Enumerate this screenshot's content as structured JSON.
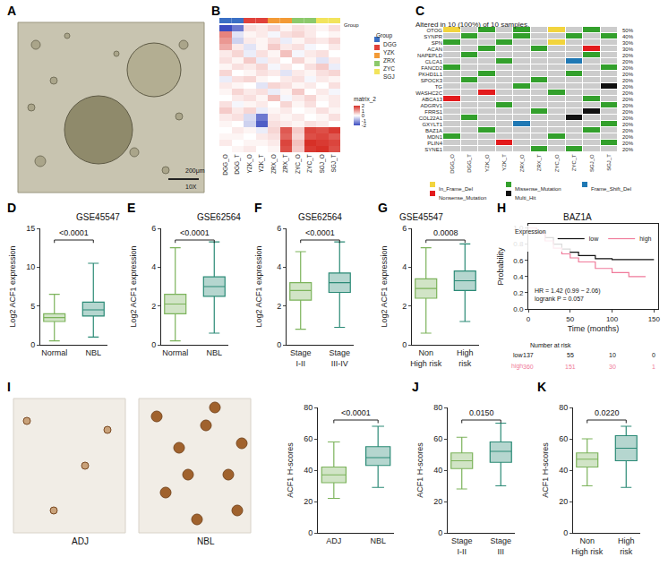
{
  "chart_data": [
    {
      "panel": "A",
      "type": "image",
      "scale_bar_label": "200μm",
      "magnification": "10X"
    },
    {
      "panel": "B",
      "type": "heatmap",
      "tick_labels": "x",
      "x": [
        "DGG_O",
        "DGG_T",
        "YZK_O",
        "YZK_T",
        "ZRX_O",
        "ZRX_T",
        "ZYC_O",
        "ZYC_T",
        "SGJ_O",
        "SGJ_T"
      ],
      "sample_groups": [
        "DGG",
        "DGG",
        "YZK",
        "YZK",
        "ZRX",
        "ZRX",
        "ZYC",
        "ZYC",
        "SGJ",
        "SGJ"
      ],
      "group_title": "Group",
      "groups": [
        {
          "name": "DGG",
          "color": "#3a6fc4"
        },
        {
          "name": "YZK",
          "color": "#e0413a"
        },
        {
          "name": "ZRX",
          "color": "#f39a35"
        },
        {
          "name": "ZYC",
          "color": "#8cc96b"
        },
        {
          "name": "SGJ",
          "color": "#f2e45c"
        }
      ],
      "colorbar_title": "matrix_2",
      "colors": [
        "#3b4cc0",
        "#ffffff",
        "#d73027"
      ],
      "color_range": [
        -2,
        2
      ],
      "color_ticks": [
        -2,
        -1,
        0,
        1,
        2
      ],
      "cells": [
        [
          -2,
          -1.5,
          0.3,
          0.2,
          0.4,
          0.1,
          0.3,
          0.2,
          0.1,
          0.3
        ],
        [
          1.2,
          -0.3,
          0.1,
          0.2,
          -0.1,
          0.3,
          0.4,
          0.2,
          0.0,
          0.1
        ],
        [
          1.0,
          -0.5,
          0.2,
          0.1,
          0.3,
          -0.2,
          0.1,
          0.3,
          0.2,
          0.4
        ],
        [
          0.8,
          0.2,
          -0.3,
          0.1,
          0.5,
          0.2,
          0.3,
          -0.1,
          0.0,
          0.2
        ],
        [
          0.2,
          0.4,
          -0.2,
          0.3,
          0.1,
          0.6,
          -0.1,
          0.2,
          0.3,
          0.0
        ],
        [
          0.3,
          0.1,
          0.5,
          -0.2,
          0.2,
          0.0,
          0.4,
          0.1,
          -0.3,
          0.2
        ],
        [
          0.1,
          0.3,
          0.2,
          0.4,
          -0.1,
          0.2,
          0.0,
          0.3,
          0.5,
          -0.2
        ],
        [
          0.4,
          0.0,
          0.1,
          0.3,
          0.2,
          -0.3,
          0.2,
          0.1,
          0.3,
          0.4
        ],
        [
          -0.2,
          0.3,
          0.4,
          0.1,
          0.0,
          0.2,
          0.3,
          -0.1,
          0.2,
          0.1
        ],
        [
          0.2,
          0.1,
          0.0,
          -0.3,
          0.4,
          0.3,
          0.1,
          0.2,
          0.0,
          0.3
        ],
        [
          0.1,
          0.4,
          0.2,
          0.3,
          -0.2,
          0.1,
          0.5,
          0.0,
          0.2,
          -0.1
        ],
        [
          0.0,
          0.2,
          0.3,
          0.1,
          0.6,
          -0.1,
          0.2,
          0.4,
          0.1,
          0.2
        ],
        [
          0.3,
          -0.1,
          0.1,
          0.2,
          0.0,
          0.4,
          0.1,
          0.3,
          0.0,
          0.2
        ],
        [
          0.5,
          0.2,
          0.4,
          -0.2,
          0.1,
          0.2,
          0.0,
          0.1,
          0.3,
          0.1
        ],
        [
          0.2,
          0.3,
          -0.4,
          -1.5,
          0.2,
          0.1,
          0.2,
          0.0,
          0.1,
          0.3
        ],
        [
          0.1,
          0.0,
          -0.5,
          -1.8,
          0.3,
          0.2,
          0.1,
          0.3,
          0.2,
          0.0
        ],
        [
          0.0,
          0.2,
          0.1,
          -0.2,
          0.4,
          1.6,
          0.5,
          1.8,
          1.7,
          1.9
        ],
        [
          0.1,
          0.1,
          0.0,
          0.2,
          0.3,
          1.5,
          0.4,
          1.7,
          1.8,
          1.6
        ],
        [
          0.2,
          0.0,
          0.1,
          0.1,
          0.2,
          1.8,
          0.6,
          2.0,
          1.9,
          1.8
        ],
        [
          0.0,
          0.1,
          0.2,
          0.0,
          0.1,
          1.7,
          0.5,
          1.9,
          2.0,
          1.7
        ]
      ]
    },
    {
      "panel": "C",
      "type": "oncoplot",
      "title": "Altered in 10 (100%) of 10 samples.",
      "x": [
        "DGG_O",
        "DGG_T",
        "YZK_O",
        "YZK_T",
        "ZRX_O",
        "ZRX_T",
        "ZYC_O",
        "ZYC_T",
        "SGJ_O",
        "SGJ_T"
      ],
      "genes": [
        "OTOG",
        "SYNPR",
        "SPN",
        "ACAN",
        "NAPEPLD",
        "CLCA1",
        "FANCD2",
        "PKHD1L1",
        "SPOCK3",
        "TG",
        "WASHC2C",
        "ABCA13",
        "ADGRV1",
        "FRRS1",
        "COL22A1",
        "GXYLT1",
        "BAZ1A",
        "MDN1",
        "PLIN4",
        "SYNE1"
      ],
      "alteration_labels": [
        "50%",
        "40%",
        "30%",
        "30%",
        "20%",
        "20%",
        "20%",
        "20%",
        "20%",
        "20%",
        "20%",
        "20%",
        "20%",
        "20%",
        "20%",
        "20%",
        "20%",
        "20%",
        "20%",
        "20%"
      ],
      "mutation_types": [
        {
          "name": "In_Frame_Del",
          "color": "#f2d43d"
        },
        {
          "name": "Missense_Mutation",
          "color": "#33a02c"
        },
        {
          "name": "Frame_Shift_Del",
          "color": "#1f78b4"
        },
        {
          "name": "Nonsense_Mutation",
          "color": "#e31a1c"
        },
        {
          "name": "Multi_Hit",
          "color": "#111111"
        }
      ],
      "cells": [
        [
          "In_Frame_Del",
          null,
          "Missense_Mutation",
          null,
          "Missense_Mutation",
          null,
          "In_Frame_Del",
          null,
          "Missense_Mutation",
          null
        ],
        [
          null,
          "Missense_Mutation",
          null,
          null,
          "Missense_Mutation",
          null,
          null,
          "Missense_Mutation",
          null,
          "Missense_Mutation"
        ],
        [
          "Missense_Mutation",
          null,
          null,
          "Missense_Mutation",
          null,
          null,
          "In_Frame_Del",
          null,
          null,
          null
        ],
        [
          null,
          null,
          "Missense_Mutation",
          null,
          null,
          "Missense_Mutation",
          null,
          null,
          "Nonsense_Mutation",
          null
        ],
        [
          null,
          "Missense_Mutation",
          null,
          null,
          null,
          null,
          null,
          null,
          "Missense_Mutation",
          null
        ],
        [
          null,
          null,
          null,
          "Missense_Mutation",
          null,
          null,
          null,
          "Frame_Shift_Del",
          null,
          null
        ],
        [
          "Missense_Mutation",
          null,
          null,
          null,
          null,
          null,
          null,
          null,
          null,
          "Missense_Mutation"
        ],
        [
          null,
          null,
          "Missense_Mutation",
          null,
          null,
          null,
          null,
          "Missense_Mutation",
          null,
          null
        ],
        [
          null,
          "Missense_Mutation",
          null,
          null,
          null,
          "Missense_Mutation",
          null,
          null,
          null,
          null
        ],
        [
          null,
          null,
          null,
          null,
          "Missense_Mutation",
          null,
          null,
          null,
          null,
          "Multi_Hit"
        ],
        [
          null,
          null,
          "Nonsense_Mutation",
          null,
          null,
          null,
          "Missense_Mutation",
          null,
          null,
          null
        ],
        [
          "Nonsense_Mutation",
          null,
          null,
          null,
          null,
          null,
          null,
          null,
          "Missense_Mutation",
          null
        ],
        [
          null,
          null,
          null,
          "Missense_Mutation",
          null,
          null,
          null,
          null,
          null,
          "Missense_Mutation"
        ],
        [
          null,
          null,
          null,
          null,
          null,
          "Missense_Mutation",
          null,
          null,
          "Multi_Hit",
          null
        ],
        [
          null,
          "Missense_Mutation",
          null,
          null,
          null,
          null,
          null,
          "Multi_Hit",
          null,
          null
        ],
        [
          null,
          null,
          null,
          null,
          "Frame_Shift_Del",
          null,
          null,
          null,
          null,
          "Missense_Mutation"
        ],
        [
          null,
          null,
          "Missense_Mutation",
          null,
          null,
          null,
          null,
          null,
          "Missense_Mutation",
          null
        ],
        [
          "Missense_Mutation",
          null,
          null,
          null,
          null,
          null,
          "Missense_Mutation",
          null,
          null,
          null
        ],
        [
          null,
          null,
          null,
          "Nonsense_Mutation",
          null,
          null,
          null,
          null,
          null,
          "Missense_Mutation"
        ],
        [
          null,
          null,
          null,
          null,
          null,
          "Missense_Mutation",
          null,
          "Missense_Mutation",
          null,
          null
        ]
      ]
    },
    {
      "panel": "D",
      "type": "box",
      "title": "GSE45547",
      "y_label": "Log2 ACF1 expression",
      "categories": [
        "Normal",
        "NBL"
      ],
      "colors": [
        "#7cb35b",
        "#2b8a76"
      ],
      "boxes": [
        {
          "q1": 3.0,
          "median": 3.5,
          "q3": 4.0,
          "lowerfence": 0.5,
          "upperfence": 6.5
        },
        {
          "q1": 3.7,
          "median": 4.5,
          "q3": 5.5,
          "lowerfence": 1.0,
          "upperfence": 10.5
        }
      ],
      "ylim": [
        0,
        15
      ],
      "yticks": [
        0,
        5,
        10,
        15
      ],
      "annotation": "<0.0001"
    },
    {
      "panel": "E",
      "type": "box",
      "title": "GSE62564",
      "y_label": "Log2 ACF1 expression",
      "categories": [
        "Normal",
        "NBL"
      ],
      "colors": [
        "#7cb35b",
        "#2b8a76"
      ],
      "boxes": [
        {
          "q1": 1.6,
          "median": 2.1,
          "q3": 2.6,
          "lowerfence": 0.2,
          "upperfence": 5.0
        },
        {
          "q1": 2.5,
          "median": 3.0,
          "q3": 3.5,
          "lowerfence": 0.6,
          "upperfence": 5.3
        }
      ],
      "ylim": [
        0,
        6
      ],
      "yticks": [
        0,
        2,
        4,
        6
      ],
      "annotation": "<0.0001"
    },
    {
      "panel": "F",
      "type": "box",
      "title": "GSE62564",
      "y_label": "Log2 ACF1 expression",
      "categories": [
        "Stage I-II",
        "Stage III-IV"
      ],
      "colors": [
        "#7cb35b",
        "#2b8a76"
      ],
      "boxes": [
        {
          "q1": 2.3,
          "median": 2.8,
          "q3": 3.2,
          "lowerfence": 0.8,
          "upperfence": 4.8
        },
        {
          "q1": 2.7,
          "median": 3.2,
          "q3": 3.7,
          "lowerfence": 0.9,
          "upperfence": 5.3
        }
      ],
      "ylim": [
        0,
        6
      ],
      "yticks": [
        0,
        2,
        4,
        6
      ],
      "annotation": "<0.0001"
    },
    {
      "panel": "G",
      "type": "box",
      "title": "GSE45547",
      "y_label": "Log2 ACF1 expression",
      "categories": [
        "Non High risk",
        "High risk"
      ],
      "colors": [
        "#7cb35b",
        "#2b8a76"
      ],
      "boxes": [
        {
          "q1": 2.4,
          "median": 2.9,
          "q3": 3.4,
          "lowerfence": 0.6,
          "upperfence": 5.0
        },
        {
          "q1": 2.8,
          "median": 3.3,
          "q3": 3.8,
          "lowerfence": 1.2,
          "upperfence": 5.2
        }
      ],
      "ylim": [
        0,
        6
      ],
      "yticks": [
        0,
        2,
        4,
        6
      ],
      "annotation": "0.0008"
    },
    {
      "panel": "H",
      "type": "line",
      "title": "BAZ1A",
      "x_label": "Time (months)",
      "y_label": "Probability",
      "xlim": [
        0,
        155
      ],
      "xticks": [
        0,
        50,
        100,
        150
      ],
      "ylim": [
        0,
        1.05
      ],
      "yticks": [
        {
          "value": 0,
          "label": "0.0"
        },
        {
          "value": 0.2,
          "label": "0.2"
        },
        {
          "value": 0.4,
          "label": "0.4"
        },
        {
          "value": 0.6,
          "label": "0.6"
        },
        {
          "value": 0.8,
          "label": "0.8"
        },
        {
          "value": 1,
          "label": "1.0"
        }
      ],
      "legend": "top right",
      "legend_title": "Expression",
      "series": [
        {
          "name": "low",
          "color": "#111111",
          "line_style": "step",
          "x": [
            0,
            10,
            20,
            30,
            40,
            50,
            60,
            80,
            100,
            150
          ],
          "values": [
            1,
            0.95,
            0.88,
            0.8,
            0.74,
            0.7,
            0.66,
            0.62,
            0.61,
            0.61
          ]
        },
        {
          "name": "high",
          "color": "#f07a9a",
          "line_style": "step",
          "x": [
            0,
            10,
            20,
            30,
            40,
            50,
            60,
            80,
            100,
            120,
            140
          ],
          "values": [
            1,
            0.93,
            0.84,
            0.75,
            0.68,
            0.63,
            0.58,
            0.5,
            0.45,
            0.4,
            0.4
          ]
        }
      ],
      "annotations": [
        "HR = 1.42 (0.99 − 2.06)",
        "logrank P = 0.057"
      ],
      "risk_table": {
        "title": "Number at risk",
        "x": [
          0,
          50,
          100,
          150
        ],
        "rows": [
          {
            "name": "low",
            "values": [
              137,
              55,
              10,
              0
            ]
          },
          {
            "name": "high",
            "values": [
              360,
              151,
              30,
              1
            ]
          }
        ]
      }
    },
    {
      "panel": "I",
      "type": "box",
      "image_labels": [
        "ADJ",
        "NBL"
      ],
      "y_label": "ACF1 H-scores",
      "categories": [
        "ADJ",
        "NBL"
      ],
      "colors": [
        "#7cb35b",
        "#2b8a76"
      ],
      "boxes": [
        {
          "q1": 32,
          "median": 37,
          "q3": 42,
          "lowerfence": 22,
          "upperfence": 58
        },
        {
          "q1": 43,
          "median": 48,
          "q3": 55,
          "lowerfence": 29,
          "upperfence": 68
        }
      ],
      "ylim": [
        0,
        80
      ],
      "yticks": [
        0,
        20,
        40,
        60,
        80
      ],
      "annotation": "<0.0001"
    },
    {
      "panel": "J",
      "type": "box",
      "y_label": "ACF1 H-scores",
      "categories": [
        "Stage I-II",
        "Stage III"
      ],
      "colors": [
        "#7cb35b",
        "#2b8a76"
      ],
      "boxes": [
        {
          "q1": 41,
          "median": 46,
          "q3": 51,
          "lowerfence": 28,
          "upperfence": 61
        },
        {
          "q1": 45,
          "median": 52,
          "q3": 58,
          "lowerfence": 30,
          "upperfence": 70
        }
      ],
      "ylim": [
        0,
        80
      ],
      "yticks": [
        0,
        20,
        40,
        60,
        80
      ],
      "annotation": "0.0150"
    },
    {
      "panel": "K",
      "type": "box",
      "y_label": "ACF1 H-scores",
      "categories": [
        "Non High risk",
        "High risk"
      ],
      "colors": [
        "#7cb35b",
        "#2b8a76"
      ],
      "boxes": [
        {
          "q1": 42,
          "median": 47,
          "q3": 51,
          "lowerfence": 30,
          "upperfence": 60
        },
        {
          "q1": 46,
          "median": 54,
          "q3": 62,
          "lowerfence": 29,
          "upperfence": 68
        }
      ],
      "ylim": [
        0,
        80
      ],
      "yticks": [
        0,
        20,
        40,
        60,
        80
      ],
      "annotation": "0.0220"
    }
  ]
}
